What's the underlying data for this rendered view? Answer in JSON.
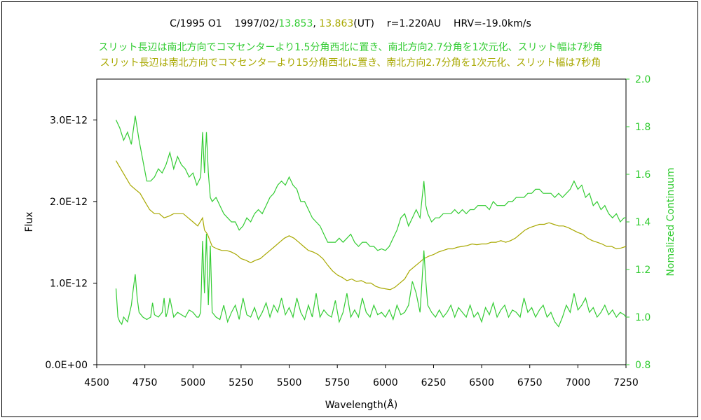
{
  "chart_data": {
    "type": "line",
    "title": {
      "object": "C/1995 O1",
      "date_prefix": "1997/02/",
      "date_a": "13.853",
      "sep": ", ",
      "date_b": "13.863",
      "date_suffix": "(UT)",
      "r": "r=1.220AU",
      "hrv": "HRV=-19.0km/s"
    },
    "subtitles": [
      {
        "text": "スリット長辺は南北方向でコマセンターより1.5分角西北に置き、南北方向2.7分角を1次元化、スリット幅は7秒角",
        "color": "#33cc33"
      },
      {
        "text": "スリット長辺は南北方向でコマセンターより15分角西北に置き、南北方向2.7分角を1次元化、スリット幅は7秒角",
        "color": "#a8a800"
      }
    ],
    "xlabel": "Wavelength(Å)",
    "ylabel": "Flux",
    "y2label": "Nomalized Continuum",
    "xlim": [
      4500,
      7250
    ],
    "ylim": [
      0,
      3.5e-12
    ],
    "y2lim": [
      0.8,
      2.0
    ],
    "xticks": [
      "4500",
      "4750",
      "5000",
      "5250",
      "5500",
      "5750",
      "6000",
      "6250",
      "6500",
      "6750",
      "7000",
      "7250"
    ],
    "yticks": [
      "0.0E+00",
      "1.0E-12",
      "2.0E-12",
      "3.0E-12"
    ],
    "y2ticks": [
      "0.8",
      "1.0",
      "1.2",
      "1.4",
      "1.6",
      "1.8",
      "2.0"
    ],
    "colors": {
      "green": "#33cc33",
      "olive": "#a8a800",
      "y2axis": "#33cc33"
    },
    "series": [
      {
        "axis": "left",
        "color": "#33cc33",
        "x": [
          4600,
          4620,
          4640,
          4660,
          4680,
          4700,
          4720,
          4740,
          4760,
          4780,
          4800,
          4820,
          4840,
          4860,
          4880,
          4900,
          4920,
          4940,
          4960,
          4980,
          5000,
          5020,
          5040,
          5050,
          5060,
          5070,
          5080,
          5090,
          5100,
          5120,
          5140,
          5160,
          5180,
          5200,
          5220,
          5240,
          5260,
          5280,
          5300,
          5320,
          5340,
          5360,
          5380,
          5400,
          5420,
          5440,
          5460,
          5480,
          5500,
          5520,
          5540,
          5560,
          5580,
          5600,
          5620,
          5640,
          5660,
          5680,
          5700,
          5720,
          5740,
          5760,
          5780,
          5800,
          5820,
          5840,
          5860,
          5880,
          5900,
          5920,
          5940,
          5960,
          5980,
          6000,
          6020,
          6040,
          6060,
          6080,
          6100,
          6120,
          6140,
          6160,
          6180,
          6200,
          6210,
          6220,
          6240,
          6260,
          6280,
          6300,
          6320,
          6340,
          6360,
          6380,
          6400,
          6420,
          6440,
          6460,
          6480,
          6500,
          6520,
          6540,
          6560,
          6580,
          6600,
          6620,
          6640,
          6660,
          6680,
          6700,
          6720,
          6740,
          6760,
          6780,
          6800,
          6820,
          6840,
          6860,
          6880,
          6900,
          6920,
          6940,
          6960,
          6980,
          7000,
          7020,
          7040,
          7060,
          7080,
          7100,
          7120,
          7140,
          7160,
          7180,
          7200,
          7220,
          7240,
          7250
        ],
        "y": [
          3e-12,
          2.9e-12,
          2.75e-12,
          2.85e-12,
          2.7e-12,
          3.05e-12,
          2.75e-12,
          2.5e-12,
          2.25e-12,
          2.25e-12,
          2.3e-12,
          2.4e-12,
          2.35e-12,
          2.45e-12,
          2.6e-12,
          2.4e-12,
          2.55e-12,
          2.45e-12,
          2.4e-12,
          2.3e-12,
          2.35e-12,
          2.2e-12,
          2.3e-12,
          2.85e-12,
          2.35e-12,
          2.85e-12,
          2.35e-12,
          2.05e-12,
          2e-12,
          2.05e-12,
          1.95e-12,
          1.85e-12,
          1.8e-12,
          1.75e-12,
          1.75e-12,
          1.65e-12,
          1.7e-12,
          1.8e-12,
          1.75e-12,
          1.85e-12,
          1.9e-12,
          1.85e-12,
          1.95e-12,
          2.05e-12,
          2.1e-12,
          2.2e-12,
          2.25e-12,
          2.2e-12,
          2.3e-12,
          2.2e-12,
          2.15e-12,
          2e-12,
          2e-12,
          1.9e-12,
          1.8e-12,
          1.75e-12,
          1.7e-12,
          1.6e-12,
          1.5e-12,
          1.5e-12,
          1.5e-12,
          1.55e-12,
          1.5e-12,
          1.55e-12,
          1.6e-12,
          1.5e-12,
          1.45e-12,
          1.5e-12,
          1.5e-12,
          1.45e-12,
          1.45e-12,
          1.4e-12,
          1.42e-12,
          1.4e-12,
          1.45e-12,
          1.55e-12,
          1.65e-12,
          1.8e-12,
          1.85e-12,
          1.7e-12,
          1.8e-12,
          1.9e-12,
          1.8e-12,
          2.25e-12,
          1.95e-12,
          1.85e-12,
          1.75e-12,
          1.8e-12,
          1.8e-12,
          1.85e-12,
          1.85e-12,
          1.85e-12,
          1.9e-12,
          1.85e-12,
          1.9e-12,
          1.85e-12,
          1.9e-12,
          1.9e-12,
          1.95e-12,
          1.95e-12,
          1.95e-12,
          1.9e-12,
          2e-12,
          1.95e-12,
          1.95e-12,
          1.95e-12,
          2e-12,
          2e-12,
          2.05e-12,
          2.05e-12,
          2.05e-12,
          2.1e-12,
          2.1e-12,
          2.15e-12,
          2.15e-12,
          2.1e-12,
          2.1e-12,
          2.1e-12,
          2.05e-12,
          2.1e-12,
          2.05e-12,
          2.1e-12,
          2.15e-12,
          2.25e-12,
          2.15e-12,
          2.2e-12,
          2.05e-12,
          2.1e-12,
          1.95e-12,
          2e-12,
          1.9e-12,
          1.95e-12,
          1.85e-12,
          1.8e-12,
          1.85e-12,
          1.75e-12,
          1.8e-12,
          1.8e-12
        ]
      },
      {
        "axis": "left",
        "color": "#a8a800",
        "x": [
          4600,
          4625,
          4650,
          4675,
          4700,
          4725,
          4750,
          4775,
          4800,
          4825,
          4850,
          4875,
          4900,
          4925,
          4950,
          4975,
          5000,
          5025,
          5050,
          5060,
          5075,
          5100,
          5125,
          5150,
          5175,
          5200,
          5225,
          5250,
          5275,
          5300,
          5325,
          5350,
          5375,
          5400,
          5425,
          5450,
          5475,
          5500,
          5525,
          5550,
          5575,
          5600,
          5625,
          5650,
          5675,
          5700,
          5725,
          5750,
          5775,
          5800,
          5825,
          5850,
          5875,
          5900,
          5925,
          5950,
          5975,
          6000,
          6025,
          6050,
          6075,
          6100,
          6125,
          6150,
          6175,
          6200,
          6225,
          6250,
          6275,
          6300,
          6325,
          6350,
          6375,
          6400,
          6425,
          6450,
          6475,
          6500,
          6525,
          6550,
          6575,
          6600,
          6625,
          6650,
          6675,
          6700,
          6725,
          6750,
          6775,
          6800,
          6825,
          6850,
          6875,
          6900,
          6925,
          6950,
          6975,
          7000,
          7025,
          7050,
          7075,
          7100,
          7125,
          7150,
          7175,
          7200,
          7225,
          7250
        ],
        "y": [
          2.5e-12,
          2.4e-12,
          2.3e-12,
          2.2e-12,
          2.15e-12,
          2.1e-12,
          2e-12,
          1.9e-12,
          1.85e-12,
          1.85e-12,
          1.8e-12,
          1.82e-12,
          1.85e-12,
          1.85e-12,
          1.85e-12,
          1.8e-12,
          1.75e-12,
          1.7e-12,
          1.8e-12,
          1.65e-12,
          1.6e-12,
          1.45e-12,
          1.42e-12,
          1.4e-12,
          1.4e-12,
          1.38e-12,
          1.35e-12,
          1.3e-12,
          1.28e-12,
          1.25e-12,
          1.28e-12,
          1.3e-12,
          1.35e-12,
          1.4e-12,
          1.45e-12,
          1.5e-12,
          1.55e-12,
          1.58e-12,
          1.55e-12,
          1.5e-12,
          1.45e-12,
          1.4e-12,
          1.38e-12,
          1.35e-12,
          1.3e-12,
          1.22e-12,
          1.15e-12,
          1.1e-12,
          1.07e-12,
          1.03e-12,
          1.05e-12,
          1.02e-12,
          1.03e-12,
          1e-12,
          1e-12,
          9.6e-13,
          9.4e-13,
          9.3e-13,
          9.2e-13,
          9.5e-13,
          1e-12,
          1.05e-12,
          1.15e-12,
          1.2e-12,
          1.25e-12,
          1.3e-12,
          1.33e-12,
          1.35e-12,
          1.38e-12,
          1.4e-12,
          1.42e-12,
          1.42e-12,
          1.44e-12,
          1.45e-12,
          1.46e-12,
          1.48e-12,
          1.47e-12,
          1.48e-12,
          1.48e-12,
          1.5e-12,
          1.5e-12,
          1.52e-12,
          1.5e-12,
          1.52e-12,
          1.55e-12,
          1.6e-12,
          1.65e-12,
          1.68e-12,
          1.7e-12,
          1.72e-12,
          1.72e-12,
          1.74e-12,
          1.72e-12,
          1.7e-12,
          1.7e-12,
          1.68e-12,
          1.65e-12,
          1.62e-12,
          1.6e-12,
          1.55e-12,
          1.52e-12,
          1.5e-12,
          1.48e-12,
          1.45e-12,
          1.45e-12,
          1.42e-12,
          1.43e-12,
          1.45e-12
        ]
      },
      {
        "axis": "right",
        "color": "#33cc33",
        "x": [
          4600,
          4610,
          4620,
          4630,
          4640,
          4660,
          4680,
          4690,
          4700,
          4710,
          4720,
          4740,
          4760,
          4780,
          4790,
          4800,
          4820,
          4840,
          4850,
          4860,
          4870,
          4880,
          4900,
          4920,
          4940,
          4960,
          4980,
          5000,
          5020,
          5030,
          5040,
          5050,
          5060,
          5070,
          5080,
          5090,
          5100,
          5120,
          5140,
          5160,
          5180,
          5200,
          5220,
          5240,
          5260,
          5280,
          5300,
          5320,
          5340,
          5360,
          5380,
          5400,
          5420,
          5440,
          5460,
          5480,
          5500,
          5520,
          5540,
          5560,
          5580,
          5600,
          5620,
          5640,
          5660,
          5680,
          5700,
          5720,
          5740,
          5760,
          5780,
          5800,
          5820,
          5840,
          5860,
          5880,
          5900,
          5920,
          5940,
          5960,
          5980,
          6000,
          6020,
          6040,
          6060,
          6080,
          6100,
          6120,
          6140,
          6160,
          6180,
          6200,
          6210,
          6220,
          6240,
          6260,
          6280,
          6300,
          6320,
          6340,
          6360,
          6380,
          6400,
          6420,
          6440,
          6460,
          6480,
          6500,
          6520,
          6540,
          6560,
          6580,
          6600,
          6620,
          6640,
          6660,
          6680,
          6700,
          6720,
          6740,
          6760,
          6780,
          6800,
          6820,
          6840,
          6860,
          6880,
          6900,
          6920,
          6940,
          6960,
          6980,
          7000,
          7020,
          7040,
          7060,
          7080,
          7100,
          7120,
          7140,
          7160,
          7180,
          7200,
          7220,
          7240,
          7250
        ],
        "y": [
          1.12,
          1.0,
          0.98,
          0.97,
          1.0,
          0.98,
          1.05,
          1.12,
          1.18,
          1.08,
          1.02,
          1.0,
          0.99,
          1.0,
          1.06,
          1.01,
          1.0,
          1.02,
          1.08,
          1.0,
          1.03,
          1.08,
          1.0,
          1.02,
          1.01,
          1.0,
          1.03,
          1.02,
          1.0,
          1.0,
          1.02,
          1.32,
          1.1,
          1.35,
          1.05,
          1.3,
          1.02,
          1.0,
          0.99,
          1.05,
          0.98,
          1.02,
          1.05,
          0.99,
          1.08,
          1.01,
          1.0,
          1.04,
          0.99,
          1.02,
          1.06,
          1.0,
          1.05,
          1.02,
          1.08,
          1.01,
          1.04,
          1.0,
          1.08,
          1.02,
          0.99,
          1.05,
          1.0,
          1.1,
          1.0,
          1.03,
          1.01,
          1.0,
          1.07,
          0.98,
          1.02,
          1.1,
          1.0,
          1.03,
          1.0,
          1.08,
          1.02,
          1.0,
          1.05,
          1.01,
          1.02,
          1.0,
          1.03,
          0.99,
          1.05,
          1.01,
          1.02,
          1.05,
          1.15,
          1.1,
          1.02,
          1.28,
          1.15,
          1.05,
          1.02,
          1.0,
          1.03,
          1.0,
          1.02,
          1.05,
          1.0,
          1.04,
          1.02,
          1.0,
          1.05,
          1.0,
          1.02,
          0.98,
          1.04,
          1.01,
          1.06,
          1.0,
          1.03,
          1.05,
          1.0,
          1.03,
          1.02,
          1.0,
          1.08,
          1.02,
          1.04,
          1.0,
          1.03,
          1.05,
          1.0,
          1.02,
          0.98,
          0.96,
          1.0,
          1.05,
          1.02,
          1.1,
          1.03,
          1.05,
          1.08,
          1.02,
          1.04,
          1.0,
          1.02,
          1.05,
          1.01,
          1.03,
          1.0,
          1.02,
          1.01,
          1.0
        ]
      }
    ]
  }
}
